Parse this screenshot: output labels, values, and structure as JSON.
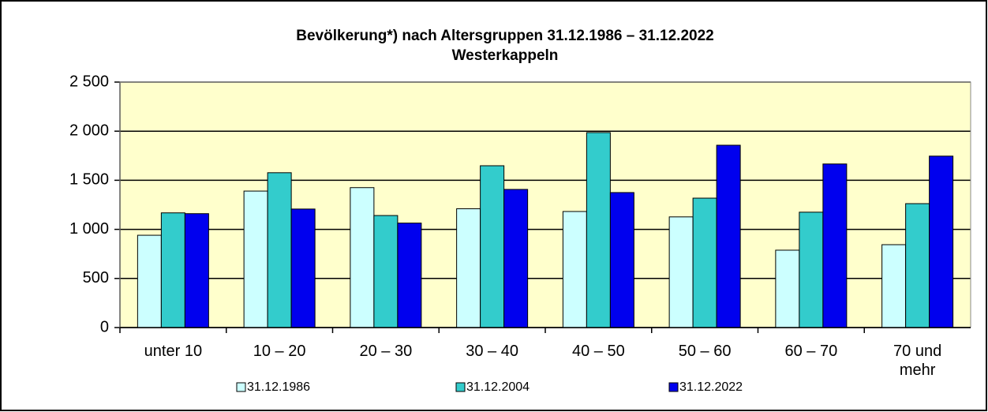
{
  "chart_data": {
    "type": "bar",
    "title": "Bevölkerung*) nach Altersgruppen 31.12.1986 – 31.12.2022",
    "subtitle": "Westerkappeln",
    "categories": [
      "unter 10",
      "10 – 20",
      "20 – 30",
      "30 – 40",
      "40 – 50",
      "50 – 60",
      "60 – 70",
      "70 und mehr"
    ],
    "series": [
      {
        "name": "31.12.1986",
        "color": "#ccffff",
        "values": [
          940,
          1390,
          1425,
          1210,
          1182,
          1127,
          788,
          844
        ]
      },
      {
        "name": "31.12.2004",
        "color": "#33cccc",
        "values": [
          1168,
          1577,
          1141,
          1648,
          1986,
          1318,
          1175,
          1262
        ]
      },
      {
        "name": "31.12.2022",
        "color": "#0000ee",
        "values": [
          1160,
          1207,
          1064,
          1407,
          1375,
          1857,
          1666,
          1746
        ]
      }
    ],
    "ylim": [
      0,
      2500
    ],
    "yticks": [
      0,
      500,
      {
        "value": 1000,
        "label": "1 000"
      },
      {
        "value": 1500,
        "label": "1 500"
      },
      {
        "value": 2000,
        "label": "2 000"
      },
      {
        "value": 2500,
        "label": "2 500"
      }
    ],
    "grid": true,
    "background": "#ffffcc",
    "legend": "bottom"
  }
}
